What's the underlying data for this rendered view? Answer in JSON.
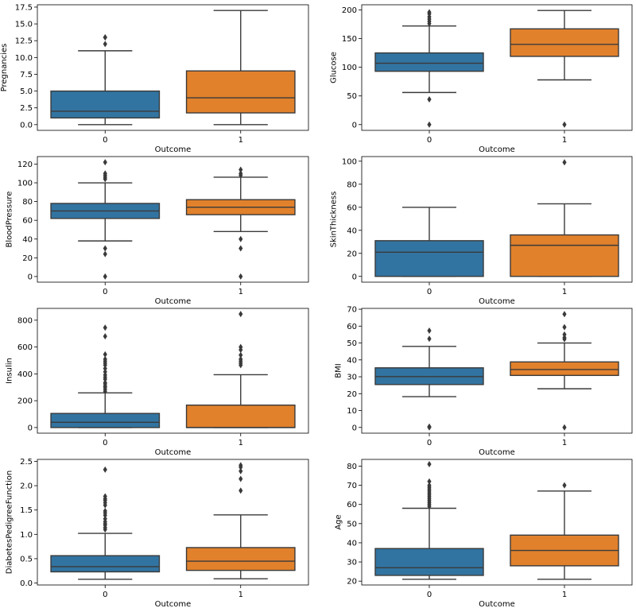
{
  "colors": {
    "class_0": "#3274a1",
    "class_1": "#e1812c",
    "line": "#3a3a3a"
  },
  "chart_data": [
    {
      "type": "box",
      "xlabel": "Outcome",
      "ylabel": "Pregnancies",
      "categories": [
        "0",
        "1"
      ],
      "ylim": [
        -0.85,
        17.85
      ],
      "yticks": [
        0.0,
        2.5,
        5.0,
        7.5,
        10.0,
        12.5,
        15.0,
        17.5
      ],
      "ytick_labels": [
        "0.0",
        "2.5",
        "5.0",
        "7.5",
        "10.0",
        "12.5",
        "15.0",
        "17.5"
      ],
      "boxes": [
        {
          "category": "0",
          "whislo": 0,
          "q1": 1,
          "median": 2,
          "q3": 5,
          "whishi": 11,
          "fliers": [
            12,
            13,
            13
          ]
        },
        {
          "category": "1",
          "whislo": 0,
          "q1": 1.75,
          "median": 4,
          "q3": 8,
          "whishi": 17,
          "fliers": []
        }
      ]
    },
    {
      "type": "box",
      "xlabel": "Outcome",
      "ylabel": "Glucose",
      "categories": [
        "0",
        "1"
      ],
      "ylim": [
        -10,
        209
      ],
      "yticks": [
        0,
        50,
        100,
        150,
        200
      ],
      "ytick_labels": [
        "0",
        "50",
        "100",
        "150",
        "200"
      ],
      "boxes": [
        {
          "category": "0",
          "whislo": 56,
          "q1": 93,
          "median": 107,
          "q3": 125,
          "whishi": 172,
          "fliers": [
            0,
            44,
            176,
            180,
            184,
            188,
            193,
            196
          ]
        },
        {
          "category": "1",
          "whislo": 78,
          "q1": 119,
          "median": 140,
          "q3": 167,
          "whishi": 199,
          "fliers": [
            0
          ]
        }
      ]
    },
    {
      "type": "box",
      "xlabel": "Outcome",
      "ylabel": "BloodPressure",
      "categories": [
        "0",
        "1"
      ],
      "ylim": [
        -6,
        128
      ],
      "yticks": [
        0,
        20,
        40,
        60,
        80,
        100,
        120
      ],
      "ytick_labels": [
        "0",
        "20",
        "40",
        "60",
        "80",
        "100",
        "120"
      ],
      "boxes": [
        {
          "category": "0",
          "whislo": 38,
          "q1": 62,
          "median": 70,
          "q3": 78,
          "whishi": 100,
          "fliers": [
            0,
            24,
            30,
            104,
            106,
            108,
            110,
            122
          ]
        },
        {
          "category": "1",
          "whislo": 48,
          "q1": 66,
          "median": 74,
          "q3": 82,
          "whishi": 106,
          "fliers": [
            0,
            30,
            40,
            108,
            110,
            114
          ]
        }
      ]
    },
    {
      "type": "box",
      "xlabel": "Outcome",
      "ylabel": "SkinThickness",
      "categories": [
        "0",
        "1"
      ],
      "ylim": [
        -5,
        104
      ],
      "yticks": [
        0,
        20,
        40,
        60,
        80,
        100
      ],
      "ytick_labels": [
        "0",
        "20",
        "40",
        "60",
        "80",
        "100"
      ],
      "boxes": [
        {
          "category": "0",
          "whislo": 0,
          "q1": 0,
          "median": 21,
          "q3": 31,
          "whishi": 60,
          "fliers": []
        },
        {
          "category": "1",
          "whislo": 0,
          "q1": 0,
          "median": 27,
          "q3": 36,
          "whishi": 63,
          "fliers": [
            99
          ]
        }
      ]
    },
    {
      "type": "box",
      "xlabel": "Outcome",
      "ylabel": "Insulin",
      "categories": [
        "0",
        "1"
      ],
      "ylim": [
        -42,
        888
      ],
      "yticks": [
        0,
        200,
        400,
        600,
        800
      ],
      "ytick_labels": [
        "0",
        "200",
        "400",
        "600",
        "800"
      ],
      "boxes": [
        {
          "category": "0",
          "whislo": 0,
          "q1": 0,
          "median": 39,
          "q3": 105,
          "whishi": 258,
          "fliers": [
            270,
            285,
            300,
            310,
            325,
            335,
            360,
            375,
            392,
            415,
            440,
            465,
            480,
            495,
            510,
            545,
            680,
            744
          ]
        },
        {
          "category": "1",
          "whislo": 0,
          "q1": 0,
          "median": 0,
          "q3": 167,
          "whishi": 394,
          "fliers": [
            465,
            480,
            495,
            510,
            540,
            579,
            600,
            846
          ]
        }
      ]
    },
    {
      "type": "box",
      "xlabel": "Outcome",
      "ylabel": "BMI",
      "categories": [
        "0",
        "1"
      ],
      "ylim": [
        -3.4,
        70.5
      ],
      "yticks": [
        0,
        10,
        20,
        30,
        40,
        50,
        60,
        70
      ],
      "ytick_labels": [
        "0",
        "10",
        "20",
        "30",
        "40",
        "50",
        "60",
        "70"
      ],
      "boxes": [
        {
          "category": "0",
          "whislo": 18.2,
          "q1": 25.4,
          "median": 30.1,
          "q3": 35.3,
          "whishi": 48,
          "fliers": [
            0,
            0.5,
            52.5,
            57.3
          ]
        },
        {
          "category": "1",
          "whislo": 22.9,
          "q1": 30.8,
          "median": 34.3,
          "q3": 38.8,
          "whishi": 50,
          "fliers": [
            0,
            52.3,
            53.2,
            55,
            59.4,
            67.1
          ]
        }
      ]
    },
    {
      "type": "box",
      "xlabel": "Outcome",
      "ylabel": "DiabetesPedigreeFunction",
      "categories": [
        "0",
        "1"
      ],
      "ylim": [
        -0.04,
        2.54
      ],
      "yticks": [
        0.0,
        0.5,
        1.0,
        1.5,
        2.0,
        2.5
      ],
      "ytick_labels": [
        "0.0",
        "0.5",
        "1.0",
        "1.5",
        "2.0",
        "2.5"
      ],
      "boxes": [
        {
          "category": "0",
          "whislo": 0.078,
          "q1": 0.23,
          "median": 0.336,
          "q3": 0.562,
          "whishi": 1.02,
          "fliers": [
            1.1,
            1.14,
            1.19,
            1.22,
            1.26,
            1.32,
            1.39,
            1.44,
            1.48,
            1.6,
            1.65,
            1.7,
            1.73,
            1.78,
            2.33
          ]
        },
        {
          "category": "1",
          "whislo": 0.088,
          "q1": 0.26,
          "median": 0.449,
          "q3": 0.728,
          "whishi": 1.4,
          "fliers": [
            1.9,
            2.14,
            2.3,
            2.38,
            2.42
          ]
        }
      ]
    },
    {
      "type": "box",
      "xlabel": "Outcome",
      "ylabel": "Age",
      "categories": [
        "0",
        "1"
      ],
      "ylim": [
        18,
        83.5
      ],
      "yticks": [
        20,
        30,
        40,
        50,
        60,
        70,
        80
      ],
      "ytick_labels": [
        "20",
        "30",
        "40",
        "50",
        "60",
        "70",
        "80"
      ],
      "boxes": [
        {
          "category": "0",
          "whislo": 21,
          "q1": 23,
          "median": 27,
          "q3": 37,
          "whishi": 58,
          "fliers": [
            59,
            60,
            61,
            62,
            63,
            64,
            65,
            66,
            67,
            68,
            69,
            70,
            72,
            81
          ]
        },
        {
          "category": "1",
          "whislo": 21,
          "q1": 28,
          "median": 36,
          "q3": 44,
          "whishi": 67,
          "fliers": [
            70
          ]
        }
      ]
    }
  ]
}
